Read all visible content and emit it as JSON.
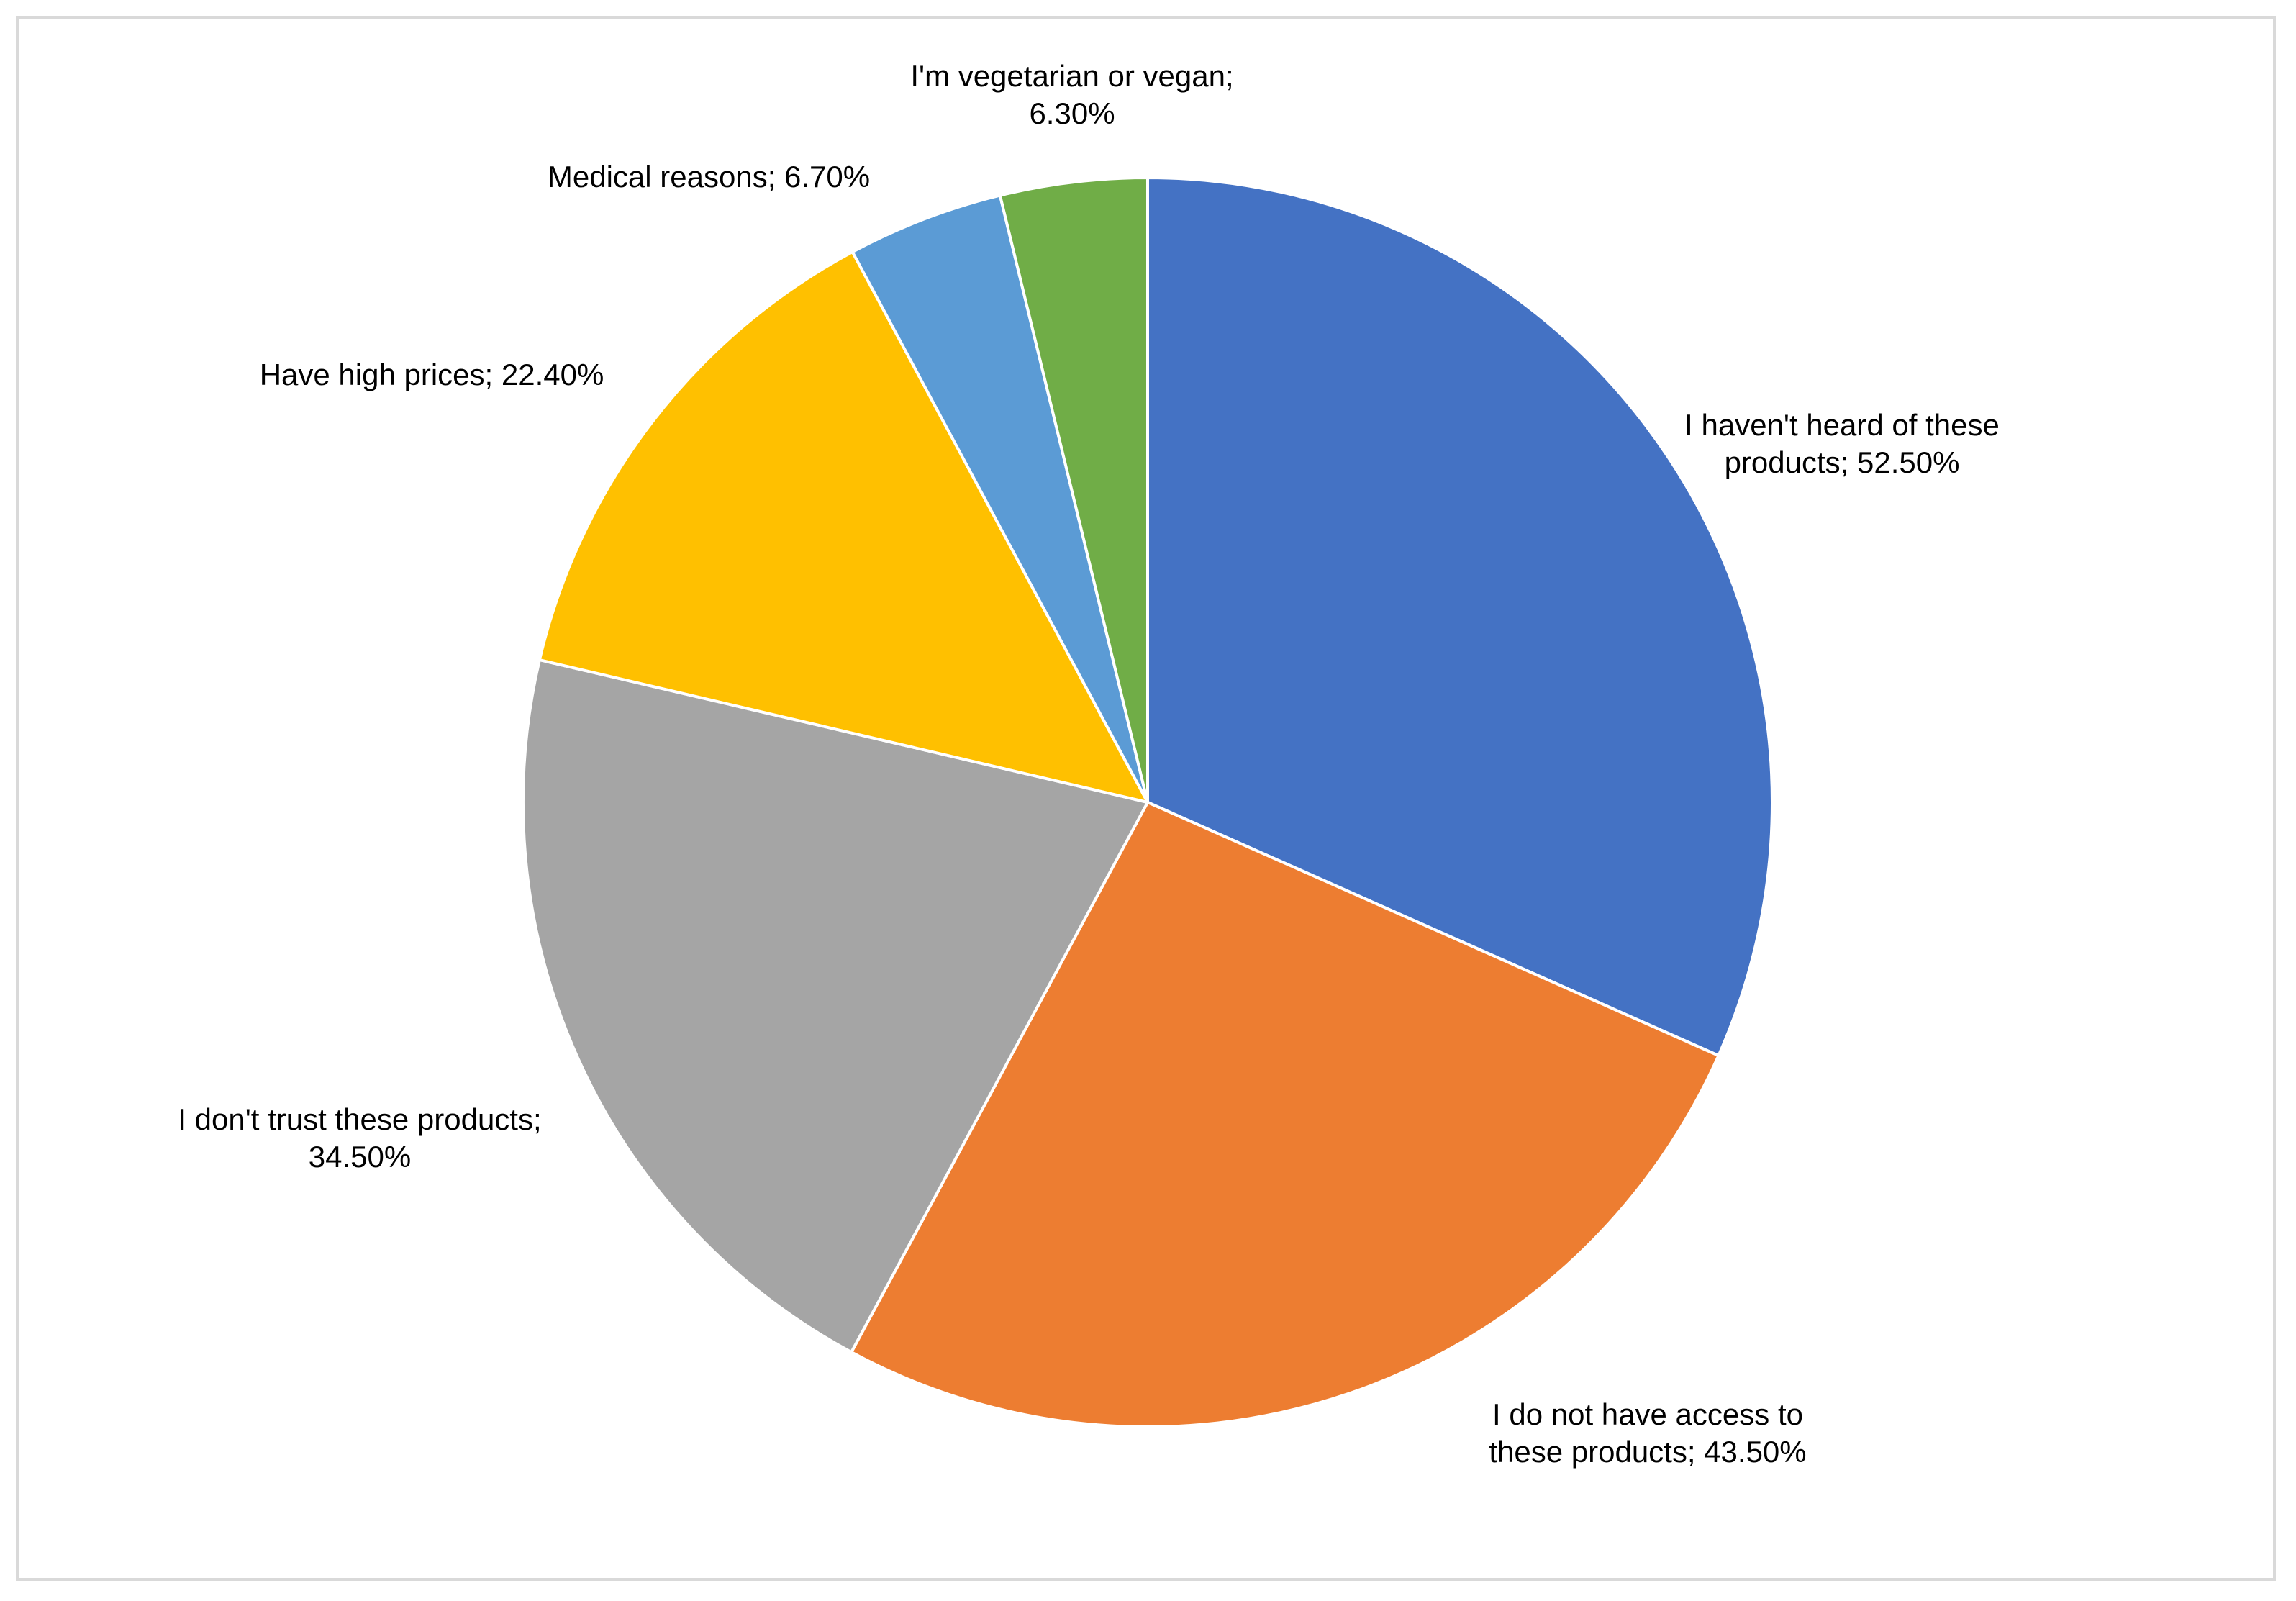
{
  "chart_data": {
    "type": "pie",
    "title": "",
    "start_angle_deg": 0,
    "direction": "clockwise",
    "colors": [
      "#4472C4",
      "#ED7D31",
      "#A5A5A5",
      "#FFC000",
      "#5B9BD5",
      "#70AD47"
    ],
    "slices": [
      {
        "label": "I haven't heard of these products",
        "value": 52.5,
        "display": "52.50%",
        "label_lines": [
          "I haven't heard of these",
          "products; 52.50%"
        ]
      },
      {
        "label": "I do not have access to these products",
        "value": 43.5,
        "display": "43.50%",
        "label_lines": [
          "I do not have access to",
          "these products; 43.50%"
        ]
      },
      {
        "label": "I don't trust these products",
        "value": 34.5,
        "display": "34.50%",
        "label_lines": [
          "I don't trust these products;",
          "34.50%"
        ]
      },
      {
        "label": "Have high prices",
        "value": 22.4,
        "display": "22.40%",
        "label_lines": [
          "Have high prices; 22.40%"
        ]
      },
      {
        "label": "Medical reasons",
        "value": 6.7,
        "display": "6.70%",
        "label_lines": [
          "Medical reasons; 6.70%"
        ]
      },
      {
        "label": "I'm vegetarian or vegan",
        "value": 6.3,
        "display": "6.30%",
        "label_lines": [
          "I'm vegetarian or vegan;",
          "6.30%"
        ]
      }
    ],
    "legend": "none",
    "data_labels": "outside"
  }
}
